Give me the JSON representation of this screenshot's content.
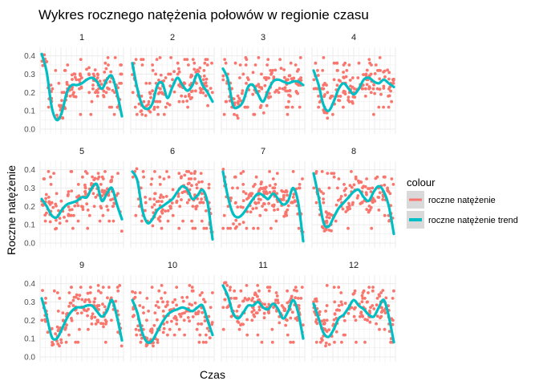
{
  "chart_data": {
    "type": "line",
    "title": "Wykres  rocznego natężenia połowów w regionie czasu",
    "xlabel": "Czas",
    "ylabel": "Roczne natężenie",
    "ylim": [
      0.0,
      0.42
    ],
    "yticks": [
      "0.0",
      "0.1",
      "0.2",
      "0.3",
      "0.4"
    ],
    "grid": true,
    "legend": {
      "title": "colour",
      "placement": "right",
      "entries": [
        "roczne natężenie",
        "roczne natężenie trend"
      ]
    },
    "colors": {
      "roczne natężenie": "#F8766D",
      "roczne natężenie trend": "#00BFC4",
      "panel_background": "#ffffff",
      "grid": "#ebebeb",
      "legend_key": "#d9d9d9"
    },
    "panels": [
      {
        "label": "1",
        "trend": [
          0.41,
          0.31,
          0.12,
          0.05,
          0.09,
          0.2,
          0.24,
          0.24,
          0.25,
          0.27,
          0.28,
          0.26,
          0.22,
          0.27,
          0.29,
          0.2,
          0.07
        ]
      },
      {
        "label": "2",
        "trend": [
          0.36,
          0.22,
          0.13,
          0.11,
          0.14,
          0.24,
          0.25,
          0.17,
          0.23,
          0.28,
          0.24,
          0.21,
          0.24,
          0.3,
          0.24,
          0.2,
          0.15
        ]
      },
      {
        "label": "3",
        "trend": [
          0.33,
          0.27,
          0.13,
          0.12,
          0.15,
          0.23,
          0.24,
          0.19,
          0.15,
          0.21,
          0.26,
          0.27,
          0.26,
          0.25,
          0.26,
          0.26,
          0.24
        ]
      },
      {
        "label": "4",
        "trend": [
          0.32,
          0.24,
          0.13,
          0.1,
          0.15,
          0.22,
          0.25,
          0.22,
          0.19,
          0.22,
          0.27,
          0.28,
          0.26,
          0.25,
          0.27,
          0.25,
          0.23
        ]
      },
      {
        "label": "5",
        "trend": [
          0.24,
          0.2,
          0.15,
          0.14,
          0.18,
          0.21,
          0.22,
          0.23,
          0.25,
          0.25,
          0.3,
          0.32,
          0.23,
          0.27,
          0.3,
          0.21,
          0.13
        ]
      },
      {
        "label": "6",
        "trend": [
          0.39,
          0.34,
          0.18,
          0.11,
          0.13,
          0.18,
          0.2,
          0.22,
          0.24,
          0.28,
          0.31,
          0.29,
          0.24,
          0.26,
          0.29,
          0.22,
          0.02
        ]
      },
      {
        "label": "7",
        "trend": [
          0.39,
          0.25,
          0.16,
          0.14,
          0.16,
          0.2,
          0.24,
          0.27,
          0.26,
          0.24,
          0.27,
          0.24,
          0.21,
          0.23,
          0.3,
          0.22,
          0.01
        ]
      },
      {
        "label": "8",
        "trend": [
          0.38,
          0.25,
          0.11,
          0.09,
          0.14,
          0.19,
          0.22,
          0.25,
          0.28,
          0.29,
          0.25,
          0.23,
          0.28,
          0.31,
          0.28,
          0.2,
          0.05
        ]
      },
      {
        "label": "9",
        "trend": [
          0.32,
          0.22,
          0.11,
          0.1,
          0.15,
          0.21,
          0.25,
          0.27,
          0.27,
          0.28,
          0.28,
          0.25,
          0.22,
          0.25,
          0.31,
          0.22,
          0.09
        ]
      },
      {
        "label": "10",
        "trend": [
          0.31,
          0.24,
          0.13,
          0.08,
          0.09,
          0.14,
          0.19,
          0.23,
          0.25,
          0.26,
          0.27,
          0.26,
          0.25,
          0.27,
          0.28,
          0.2,
          0.12
        ]
      },
      {
        "label": "11",
        "trend": [
          0.39,
          0.33,
          0.24,
          0.21,
          0.24,
          0.28,
          0.28,
          0.3,
          0.27,
          0.26,
          0.29,
          0.26,
          0.21,
          0.25,
          0.31,
          0.24,
          0.1
        ]
      },
      {
        "label": "12",
        "trend": [
          0.29,
          0.21,
          0.13,
          0.11,
          0.15,
          0.21,
          0.23,
          0.27,
          0.31,
          0.28,
          0.26,
          0.23,
          0.22,
          0.27,
          0.31,
          0.22,
          0.08
        ]
      }
    ]
  }
}
